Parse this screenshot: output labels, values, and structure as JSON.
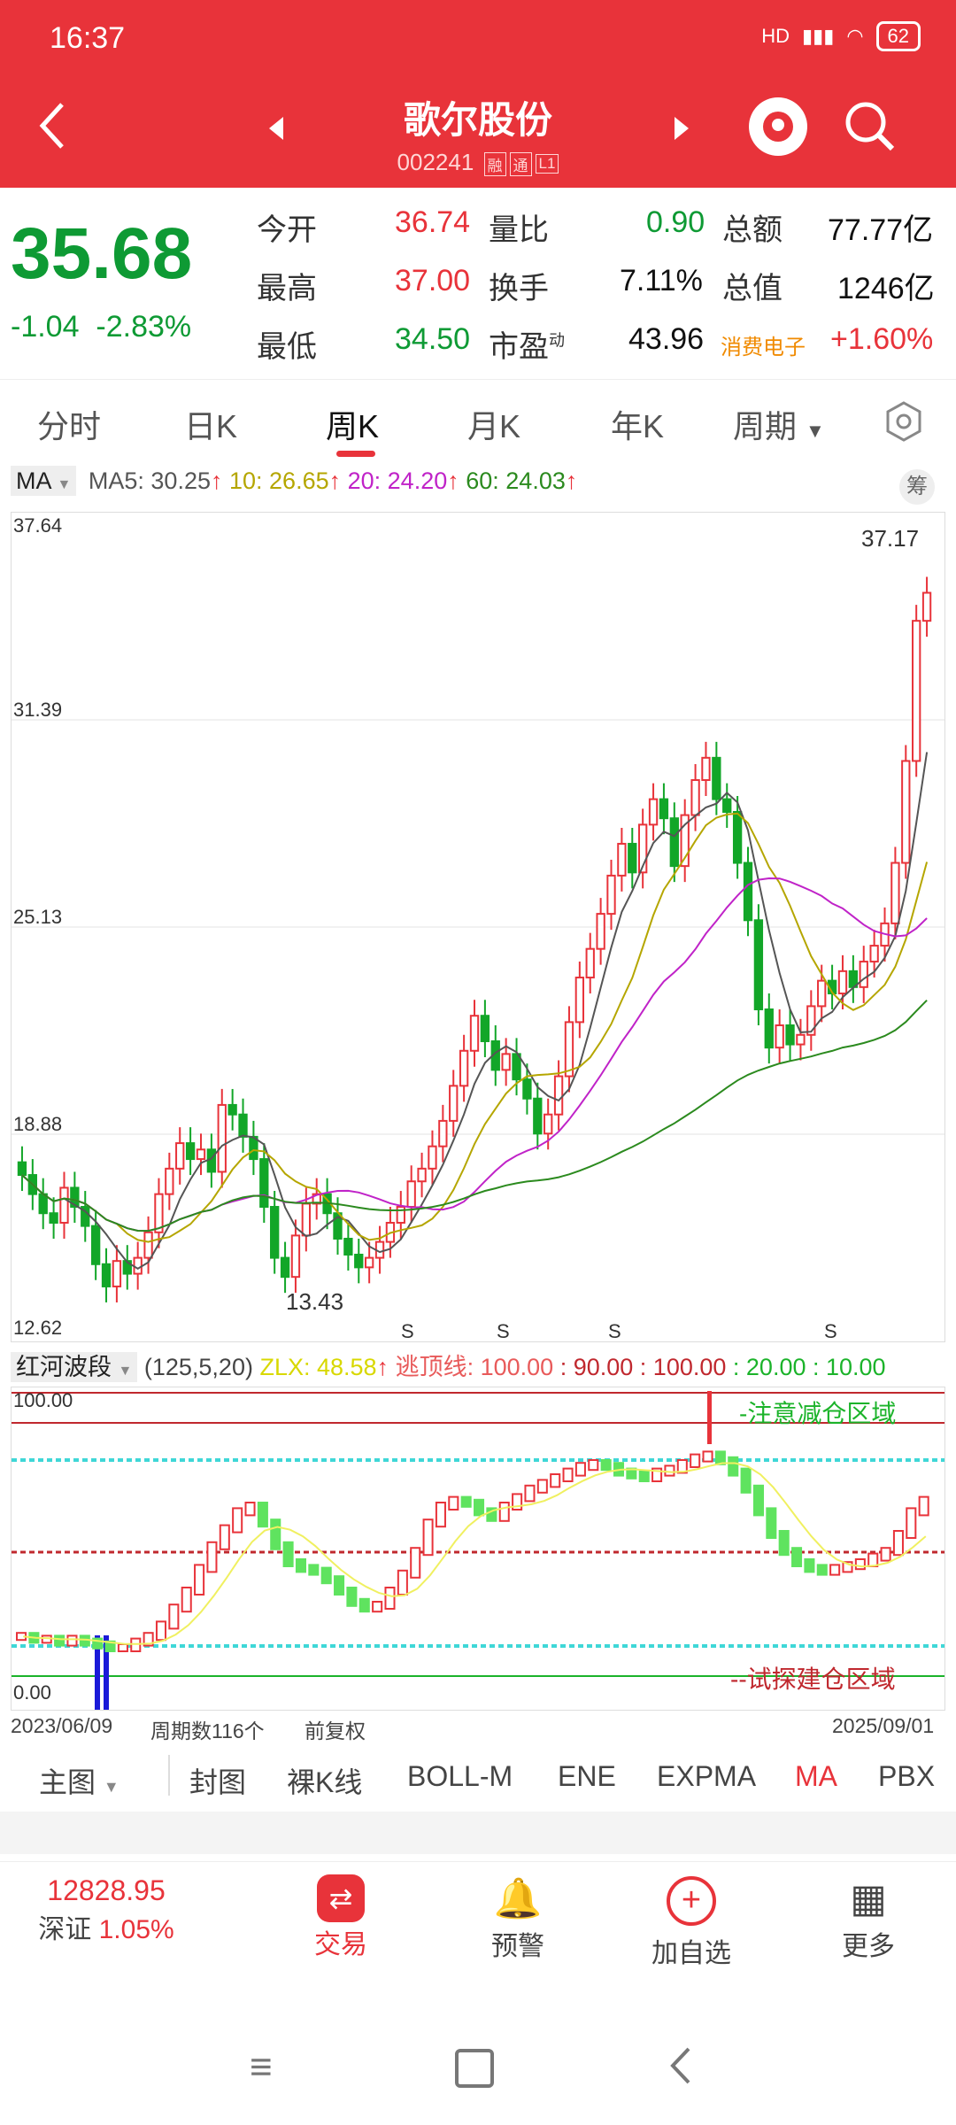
{
  "status": {
    "time": "16:37",
    "battery": "62",
    "net": "HD"
  },
  "header": {
    "name": "歌尔股份",
    "code": "002241",
    "tags": [
      "融",
      "通",
      "L1"
    ]
  },
  "quote": {
    "price": "35.68",
    "change": "-1.04",
    "change_pct": "-2.83%",
    "open_label": "今开",
    "open": "36.74",
    "high_label": "最高",
    "high": "37.00",
    "low_label": "最低",
    "low": "34.50",
    "vr_label": "量比",
    "vr": "0.90",
    "turnover_label": "换手",
    "turnover": "7.11%",
    "pe_label": "市盈",
    "pe_sup": "动",
    "pe": "43.96",
    "amount_label": "总额",
    "amount": "77.77亿",
    "mcap_label": "总值",
    "mcap": "1246亿",
    "sector_label": "消费电子",
    "sector": "+1.60%"
  },
  "tabs": [
    "分时",
    "日K",
    "周K",
    "月K",
    "年K",
    "周期"
  ],
  "active_tab": "周K",
  "ma": {
    "selector": "MA",
    "ma5": "MA5: 30.25",
    "ma10": "10: 26.65",
    "ma20": "20: 24.20",
    "ma60": "60: 24.03",
    "chip_btn": "筹"
  },
  "axis": {
    "y": [
      "37.64",
      "31.39",
      "25.13",
      "18.88",
      "12.62"
    ],
    "max_label": "37.17",
    "min_label": "13.43",
    "s_marks": [
      "S",
      "S",
      "S",
      "S"
    ]
  },
  "indicator": {
    "name": "红河波段",
    "params": "(125,5,20)",
    "zlx": "ZLX: 48.58",
    "top": "逃顶线: 100.00",
    "l90": ": 90.00",
    "l100": ": 100.00",
    "l20": ": 20.00",
    "l10": ": 10.00",
    "y_top": "100.00",
    "y_bot": "0.00",
    "zone_top": "-注意减仓区域",
    "zone_bot": "--试探建仓区域",
    "start_date": "2023/06/09",
    "period_count": "周期数116个",
    "adjust": "前复权",
    "end_date": "2025/09/01"
  },
  "ind_tabs": [
    "主图",
    "封图",
    "裸K线",
    "BOLL-M",
    "ENE",
    "EXPMA",
    "MA",
    "PBX"
  ],
  "ind_tab_active": "MA",
  "bottom": {
    "index_value": "12828.95",
    "index_name": "深证",
    "index_pct": "1.05%",
    "trade": "交易",
    "alert": "预警",
    "add": "加自选",
    "more": "更多"
  },
  "chart_data": {
    "type": "candlestick",
    "ylim": [
      12.62,
      37.64
    ],
    "close": [
      17.4,
      16.8,
      16.2,
      15.9,
      17.0,
      16.4,
      15.8,
      14.6,
      13.9,
      14.7,
      14.3,
      14.8,
      15.6,
      16.8,
      17.6,
      18.4,
      17.9,
      18.2,
      17.5,
      19.6,
      19.3,
      18.6,
      17.9,
      16.4,
      14.8,
      14.2,
      15.5,
      16.5,
      16.8,
      16.2,
      15.4,
      14.9,
      14.5,
      14.8,
      15.3,
      15.9,
      16.4,
      17.2,
      17.6,
      18.3,
      19.1,
      20.2,
      21.3,
      22.4,
      21.6,
      20.7,
      21.2,
      20.4,
      19.8,
      18.7,
      19.3,
      20.5,
      22.2,
      23.6,
      24.5,
      25.6,
      26.8,
      27.8,
      26.9,
      28.4,
      29.2,
      28.6,
      27.1,
      28.7,
      29.8,
      30.5,
      29.2,
      28.8,
      27.2,
      25.4,
      22.6,
      21.4,
      22.1,
      21.5,
      21.8,
      22.7,
      23.5,
      23.1,
      23.8,
      23.3,
      24.1,
      24.6,
      25.3,
      27.2,
      30.4,
      34.8,
      35.68
    ],
    "ma_labels": [
      "MA5",
      "10",
      "20",
      "60"
    ],
    "indicator_values": [
      14,
      13,
      13,
      12,
      13,
      12,
      11,
      10,
      10,
      12,
      14,
      18,
      24,
      30,
      38,
      46,
      52,
      58,
      60,
      54,
      46,
      40,
      38,
      37,
      34,
      30,
      26,
      24,
      25,
      30,
      36,
      44,
      54,
      60,
      62,
      61,
      58,
      56,
      60,
      63,
      66,
      68,
      70,
      72,
      74,
      75,
      74,
      72,
      71,
      70,
      72,
      73,
      75,
      77,
      78,
      76,
      72,
      66,
      58,
      50,
      44,
      40,
      38,
      37,
      38,
      39,
      40,
      42,
      44,
      50,
      58,
      62
    ]
  }
}
